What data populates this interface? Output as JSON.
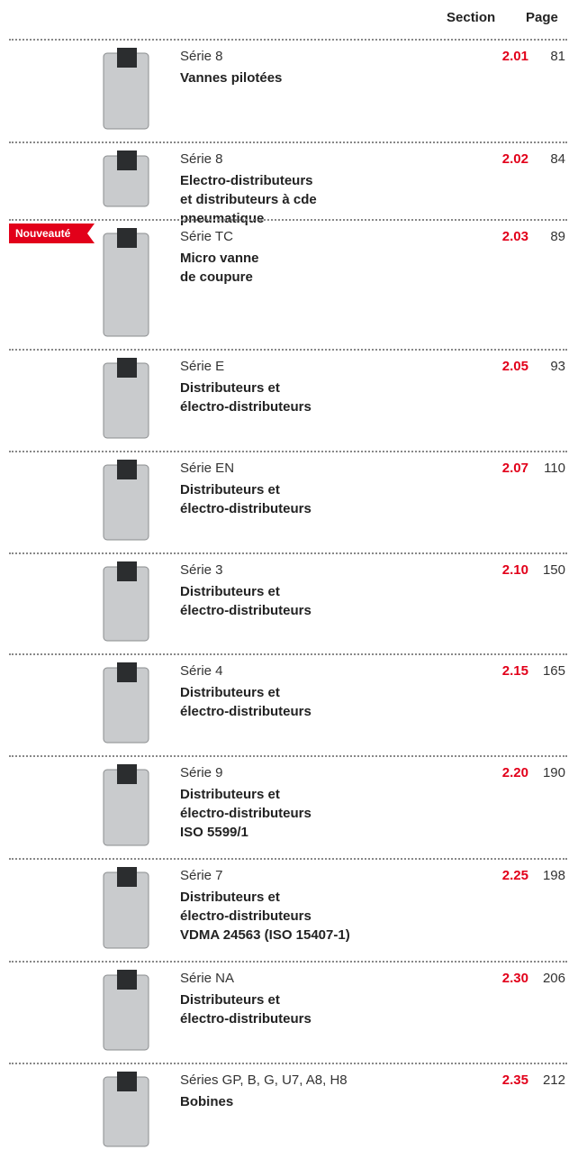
{
  "header": {
    "section": "Section",
    "page": "Page"
  },
  "rows": [
    {
      "series": "Série 8",
      "name_lines": [
        "Vannes pilotées"
      ],
      "section": "2.01",
      "page": 81
    },
    {
      "series": "Série 8",
      "name_lines": [
        "Electro-distributeurs",
        "et distributeurs à cde",
        "pneumatique"
      ],
      "section": "2.02",
      "page": 84
    },
    {
      "series": "Série TC",
      "name_lines": [
        "Micro vanne",
        "de coupure"
      ],
      "section": "2.03",
      "page": 89,
      "badge": "Nouveauté"
    },
    {
      "series": "Série E",
      "name_lines": [
        "Distributeurs et",
        "électro-distributeurs"
      ],
      "section": "2.05",
      "page": 93
    },
    {
      "series": "Série EN",
      "name_lines": [
        "Distributeurs et",
        "électro-distributeurs"
      ],
      "section": "2.07",
      "page": 110
    },
    {
      "series": "Série 3",
      "name_lines": [
        "Distributeurs et",
        "électro-distributeurs"
      ],
      "section": "2.10",
      "page": 150
    },
    {
      "series": "Série 4",
      "name_lines": [
        "Distributeurs et",
        "électro-distributeurs"
      ],
      "section": "2.15",
      "page": 165
    },
    {
      "series": "Série 9",
      "name_lines": [
        "Distributeurs et",
        "électro-distributeurs",
        "ISO 5599/1"
      ],
      "section": "2.20",
      "page": 190
    },
    {
      "series": "Série 7",
      "name_lines": [
        "Distributeurs et",
        "électro-distributeurs",
        "VDMA 24563 (ISO 15407-1)"
      ],
      "section": "2.25",
      "page": 198
    },
    {
      "series": "Série NA",
      "name_lines": [
        "Distributeurs et",
        "électro-distributeurs"
      ],
      "section": "2.30",
      "page": 206
    },
    {
      "series": "Séries GP, B, G, U7, A8, H8",
      "name_lines": [
        "Bobines"
      ],
      "section": "2.35",
      "page": 212
    }
  ]
}
